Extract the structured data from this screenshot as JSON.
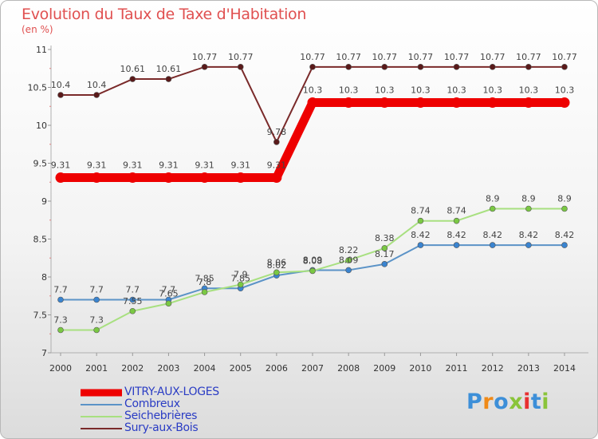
{
  "title": "Evolution du Taux de Taxe d'Habitation",
  "unit": "(en %)",
  "logo": [
    "P",
    "r",
    "o",
    "x",
    "i",
    "t",
    "i"
  ],
  "colors": {
    "background": "#ffffff",
    "axis": "#b0b0b0",
    "label": "#333333",
    "title": "#e05050"
  },
  "chart_data": {
    "type": "line",
    "title": "Evolution du Taux de Taxe d'Habitation",
    "ylabel": "(en %)",
    "xlabel": "",
    "ylim": [
      7,
      11
    ],
    "yticks": [
      "7",
      "7.5",
      "8",
      "8.5",
      "9",
      "9.5",
      "10",
      "10.5",
      "11"
    ],
    "x": [
      "2000",
      "2001",
      "2002",
      "2003",
      "2004",
      "2005",
      "2006",
      "2007",
      "2008",
      "2009",
      "2010",
      "2011",
      "2012",
      "2013",
      "2014"
    ],
    "grid": false,
    "legend_position": "bottom-left",
    "series": [
      {
        "name": "VITRY-AUX-LOGES",
        "color": "#ee0000",
        "marker": "#ee0000",
        "values": [
          9.31,
          9.31,
          9.31,
          9.31,
          9.31,
          9.31,
          9.31,
          10.3,
          10.3,
          10.3,
          10.3,
          10.3,
          10.3,
          10.3,
          10.3
        ],
        "labels": [
          "9.31",
          "9.31",
          "9.31",
          "9.31",
          "9.31",
          "9.31",
          "9.31",
          "10.3",
          "10.3",
          "10.3",
          "10.3",
          "10.3",
          "10.3",
          "10.3",
          "10.3"
        ]
      },
      {
        "name": "Combreux",
        "color": "#5b93c7",
        "marker": "#3a84d0",
        "values": [
          7.7,
          7.7,
          7.7,
          7.7,
          7.85,
          7.85,
          8.02,
          8.09,
          8.09,
          8.17,
          8.42,
          8.42,
          8.42,
          8.42,
          8.42
        ],
        "labels": [
          "7.7",
          "7.7",
          "7.7",
          "7.7",
          "7.85",
          "7.85",
          "8.02",
          "8.09",
          "8.09",
          "8.17",
          "8.42",
          "8.42",
          "8.42",
          "8.42",
          "8.42"
        ]
      },
      {
        "name": "Seichebrières",
        "color": "#a8e080",
        "marker": "#7ac843",
        "values": [
          7.3,
          7.3,
          7.55,
          7.65,
          7.8,
          7.9,
          8.06,
          8.08,
          8.22,
          8.38,
          8.74,
          8.74,
          8.9,
          8.9,
          8.9
        ],
        "labels": [
          "7.3",
          "7.3",
          "7.55",
          "7.65",
          "7.8",
          "7.9",
          "8.06",
          "8.08",
          "8.22",
          "8.38",
          "8.74",
          "8.74",
          "8.9",
          "8.9",
          "8.9"
        ]
      },
      {
        "name": "Sury-aux-Bois",
        "color": "#7a2a2a",
        "marker": "#5a1a1a",
        "values": [
          10.4,
          10.4,
          10.61,
          10.61,
          10.77,
          10.77,
          9.78,
          10.77,
          10.77,
          10.77,
          10.77,
          10.77,
          10.77,
          10.77,
          10.77
        ],
        "labels": [
          "10.4",
          "10.4",
          "10.61",
          "10.61",
          "10.77",
          "10.77",
          "9.78",
          "10.77",
          "10.77",
          "10.77",
          "10.77",
          "10.77",
          "10.77",
          "10.77",
          "10.77"
        ]
      }
    ]
  }
}
